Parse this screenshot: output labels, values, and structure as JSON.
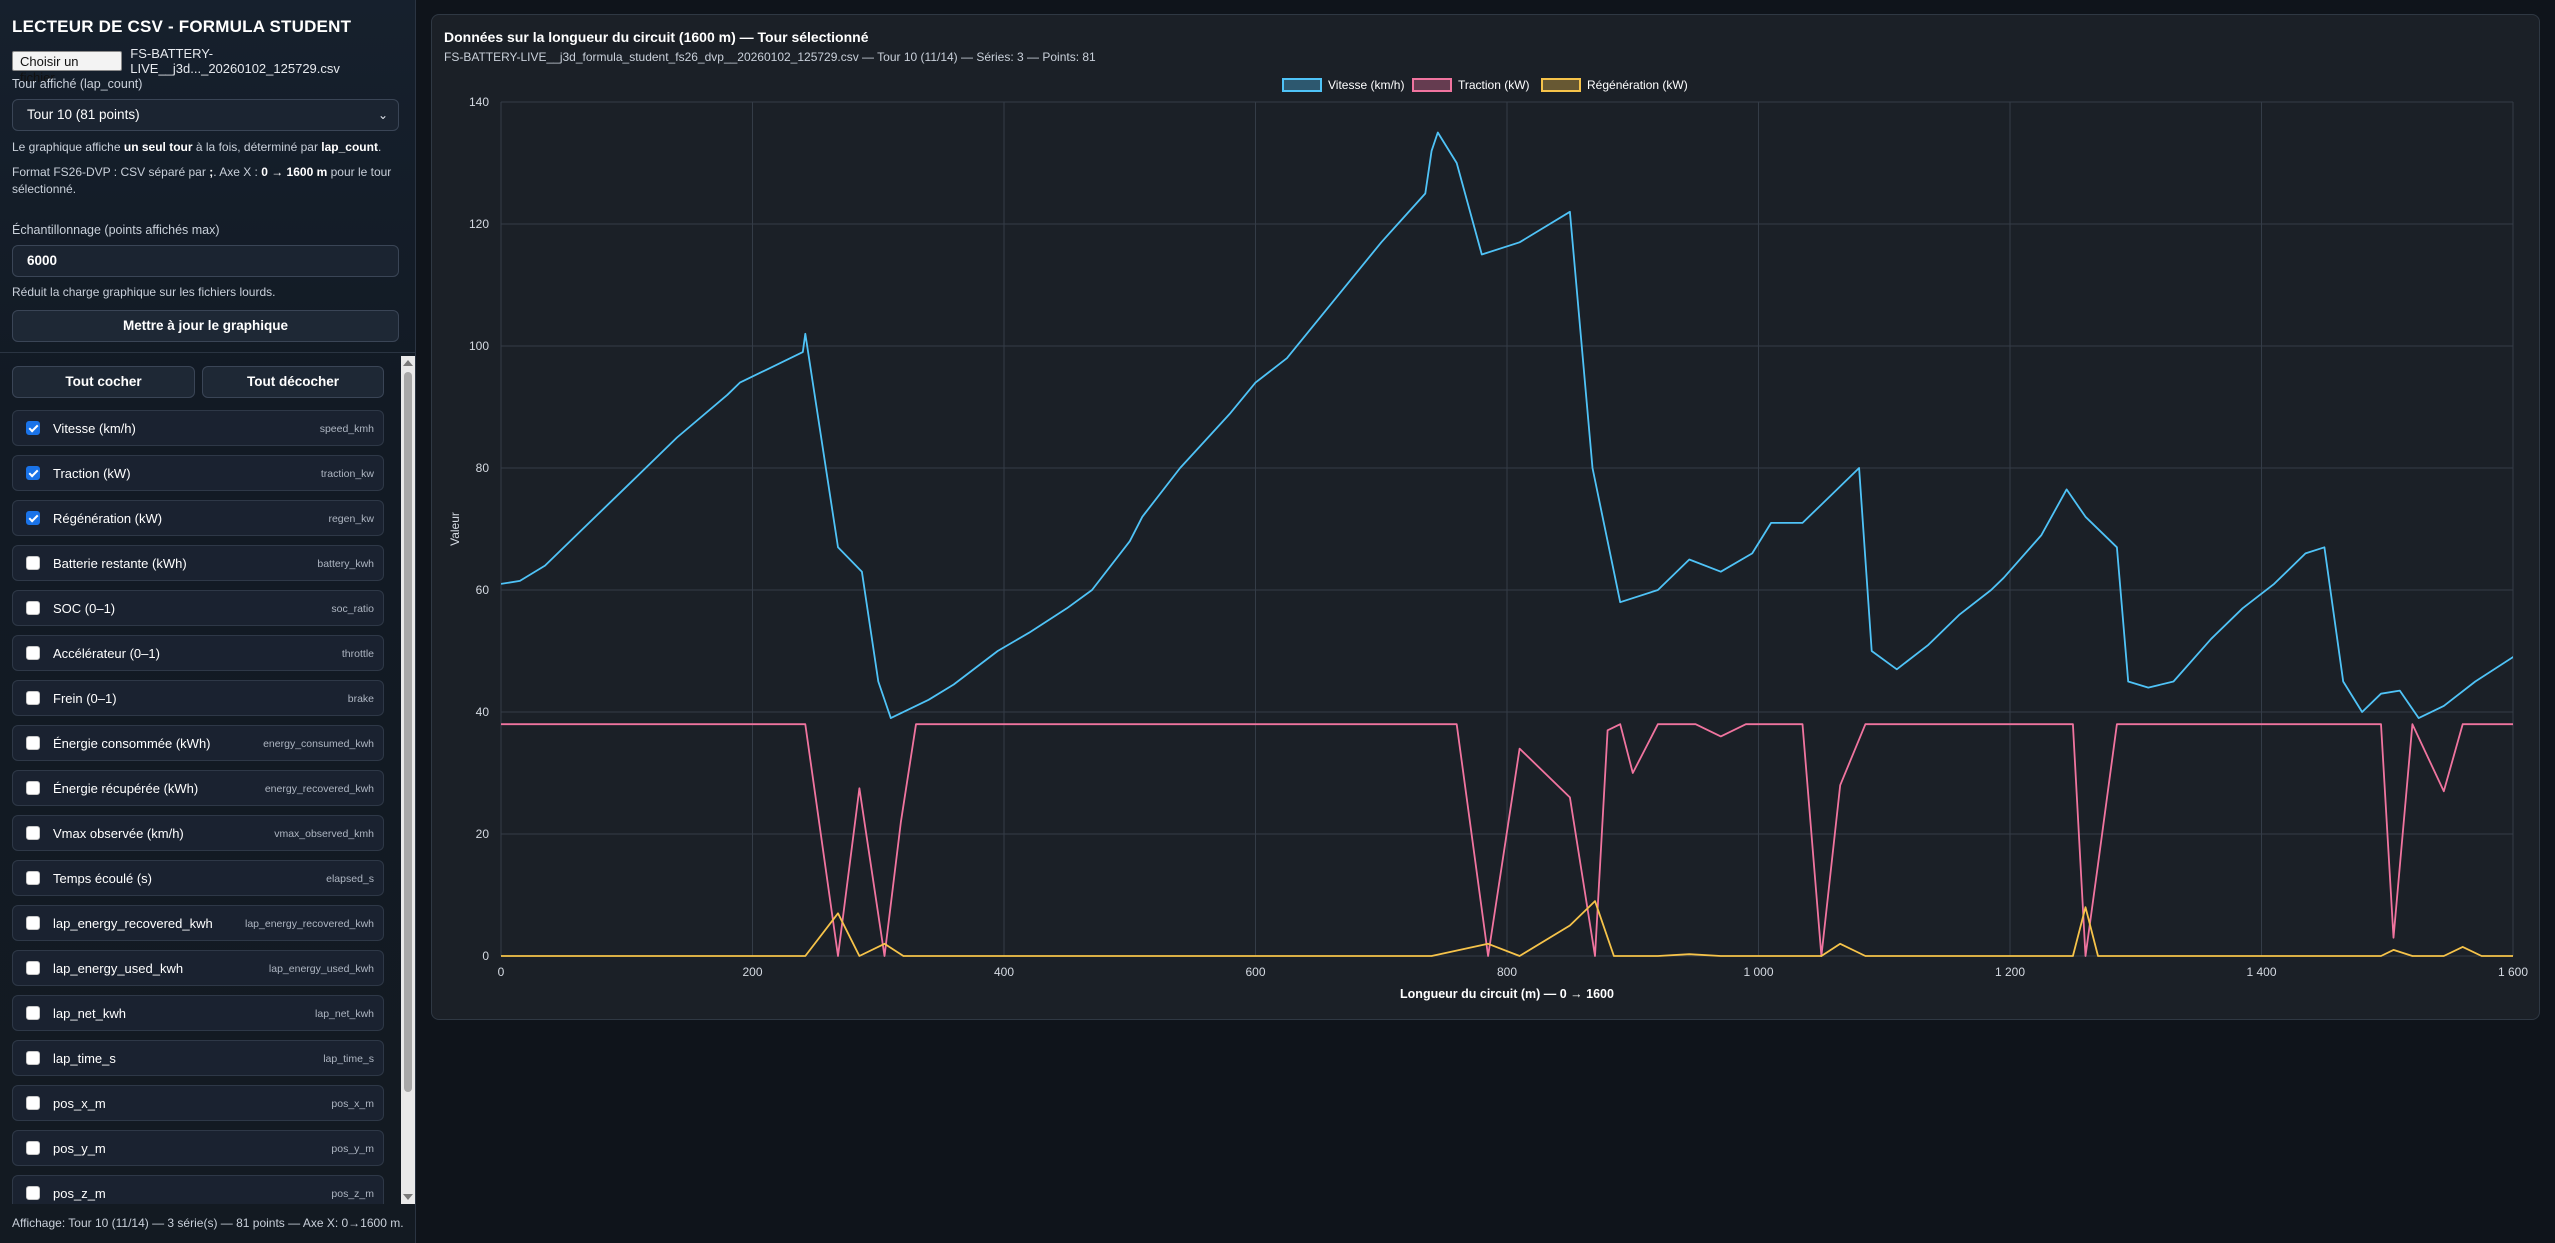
{
  "app": {
    "title": "LECTEUR DE CSV - FORMULA STUDENT",
    "file_button": "Choisir un fichier",
    "file_name": "FS-BATTERY-LIVE__j3d..._20260102_125729.csv"
  },
  "lap": {
    "label": "Tour affiché (lap_count)",
    "selected": "Tour 10 (81 points)",
    "note_pre": "Le graphique affiche ",
    "note_b1": "un seul tour",
    "note_mid": " à la fois, déterminé par ",
    "note_b2": "lap_count",
    "note_end": ".",
    "format_pre": "Format FS26-DVP : CSV séparé par ",
    "format_b1": ";",
    "format_mid": ". Axe X : ",
    "format_b2": "0 → 1600 m",
    "format_end": " pour le tour sélectionné."
  },
  "sampling": {
    "label": "Échantillonnage (points affichés max)",
    "value": "6000",
    "note": "Réduit la charge graphique sur les fichiers lourds.",
    "update_button": "Mettre à jour le graphique"
  },
  "series_controls": {
    "check_all": "Tout cocher",
    "uncheck_all": "Tout décocher"
  },
  "series_list": [
    {
      "label": "Vitesse (km/h)",
      "key": "speed_kmh",
      "checked": true
    },
    {
      "label": "Traction (kW)",
      "key": "traction_kw",
      "checked": true
    },
    {
      "label": "Régénération (kW)",
      "key": "regen_kw",
      "checked": true
    },
    {
      "label": "Batterie restante (kWh)",
      "key": "battery_kwh",
      "checked": false
    },
    {
      "label": "SOC (0–1)",
      "key": "soc_ratio",
      "checked": false
    },
    {
      "label": "Accélérateur (0–1)",
      "key": "throttle",
      "checked": false
    },
    {
      "label": "Frein (0–1)",
      "key": "brake",
      "checked": false
    },
    {
      "label": "Énergie consommée (kWh)",
      "key": "energy_consumed_kwh",
      "checked": false
    },
    {
      "label": "Énergie récupérée (kWh)",
      "key": "energy_recovered_kwh",
      "checked": false
    },
    {
      "label": "Vmax observée (km/h)",
      "key": "vmax_observed_kmh",
      "checked": false
    },
    {
      "label": "Temps écoulé (s)",
      "key": "elapsed_s",
      "checked": false
    },
    {
      "label": "lap_energy_recovered_kwh",
      "key": "lap_energy_recovered_kwh",
      "checked": false
    },
    {
      "label": "lap_energy_used_kwh",
      "key": "lap_energy_used_kwh",
      "checked": false
    },
    {
      "label": "lap_net_kwh",
      "key": "lap_net_kwh",
      "checked": false
    },
    {
      "label": "lap_time_s",
      "key": "lap_time_s",
      "checked": false
    },
    {
      "label": "pos_x_m",
      "key": "pos_x_m",
      "checked": false
    },
    {
      "label": "pos_y_m",
      "key": "pos_y_m",
      "checked": false
    },
    {
      "label": "pos_z_m",
      "key": "pos_z_m",
      "checked": false
    }
  ],
  "status": "Affichage: Tour 10 (11/14) — 3 série(s) — 81 points — Axe X: 0→1600 m.",
  "panel": {
    "title": "Données sur la longueur du circuit (1600 m) — Tour sélectionné",
    "subtitle": "FS-BATTERY-LIVE__j3d_formula_student_fs26_dvp__20260102_125729.csv — Tour 10 (11/14) — Séries: 3 — Points: 81"
  },
  "colors": {
    "speed": "#4fc3f7",
    "traction": "#f0749f",
    "regen": "#f6c34a",
    "grid": "#343c47",
    "axis_text": "#d5dae2"
  },
  "chart_data": {
    "type": "line",
    "xlabel": "Longueur du circuit (m) — 0 → 1600",
    "ylabel": "Valeur",
    "xlim": [
      0,
      1600
    ],
    "ylim": [
      0,
      140
    ],
    "x_ticks": [
      "0",
      "200",
      "400",
      "600",
      "800",
      "1 000",
      "1 200",
      "1 400",
      "1 600"
    ],
    "y_ticks": [
      "0",
      "20",
      "40",
      "60",
      "80",
      "100",
      "120",
      "140"
    ],
    "grid": true,
    "legend_position": "top-center",
    "series": [
      {
        "name": "Vitesse (km/h)",
        "points": [
          [
            0,
            61
          ],
          [
            15,
            61.5
          ],
          [
            35,
            64
          ],
          [
            60,
            69
          ],
          [
            100,
            77
          ],
          [
            140,
            85
          ],
          [
            180,
            92
          ],
          [
            190,
            94
          ],
          [
            210,
            96
          ],
          [
            240,
            99
          ],
          [
            242,
            102
          ],
          [
            268,
            67
          ],
          [
            287,
            63
          ],
          [
            300,
            45
          ],
          [
            310,
            39
          ],
          [
            340,
            42
          ],
          [
            360,
            44.5
          ],
          [
            395,
            50
          ],
          [
            420,
            53
          ],
          [
            450,
            57
          ],
          [
            470,
            60
          ],
          [
            500,
            68
          ],
          [
            510,
            72
          ],
          [
            540,
            80
          ],
          [
            580,
            89
          ],
          [
            600,
            94
          ],
          [
            625,
            98
          ],
          [
            700,
            117
          ],
          [
            735,
            125
          ],
          [
            740,
            132
          ],
          [
            745,
            135
          ],
          [
            760,
            130
          ],
          [
            780,
            115
          ],
          [
            810,
            117
          ],
          [
            850,
            122
          ],
          [
            868,
            80
          ],
          [
            890,
            58
          ],
          [
            920,
            60
          ],
          [
            945,
            65
          ],
          [
            970,
            63
          ],
          [
            995,
            66
          ],
          [
            1010,
            71
          ],
          [
            1035,
            71
          ],
          [
            1050,
            74
          ],
          [
            1080,
            80
          ],
          [
            1090,
            50
          ],
          [
            1110,
            47
          ],
          [
            1135,
            51
          ],
          [
            1160,
            56
          ],
          [
            1185,
            60
          ],
          [
            1195,
            62
          ],
          [
            1225,
            69
          ],
          [
            1245,
            76.5
          ],
          [
            1260,
            72
          ],
          [
            1285,
            67
          ],
          [
            1294,
            45
          ],
          [
            1310,
            44
          ],
          [
            1330,
            45
          ],
          [
            1360,
            52
          ],
          [
            1385,
            57
          ],
          [
            1410,
            61
          ],
          [
            1435,
            66
          ],
          [
            1450,
            67
          ],
          [
            1465,
            45
          ],
          [
            1480,
            40
          ],
          [
            1495,
            43
          ],
          [
            1510,
            43.5
          ],
          [
            1525,
            39
          ],
          [
            1545,
            41
          ],
          [
            1570,
            45
          ],
          [
            1600,
            49
          ],
          [
            1640,
            55
          ]
        ]
      },
      {
        "name": "Traction (kW)",
        "points": [
          [
            0,
            38
          ],
          [
            240,
            38
          ],
          [
            242,
            38
          ],
          [
            268,
            0
          ],
          [
            285,
            27.5
          ],
          [
            305,
            0
          ],
          [
            318,
            22
          ],
          [
            330,
            38
          ],
          [
            745,
            38
          ],
          [
            760,
            38
          ],
          [
            785,
            0
          ],
          [
            810,
            34
          ],
          [
            850,
            26
          ],
          [
            870,
            0
          ],
          [
            880,
            37
          ],
          [
            890,
            38
          ],
          [
            900,
            30
          ],
          [
            920,
            38
          ],
          [
            950,
            38
          ],
          [
            970,
            36
          ],
          [
            990,
            38
          ],
          [
            1035,
            38
          ],
          [
            1050,
            0
          ],
          [
            1065,
            28
          ],
          [
            1085,
            38
          ],
          [
            1250,
            38
          ],
          [
            1260,
            0
          ],
          [
            1270,
            15
          ],
          [
            1285,
            38
          ],
          [
            1495,
            38
          ],
          [
            1505,
            3
          ],
          [
            1520,
            38
          ],
          [
            1545,
            27
          ],
          [
            1560,
            38
          ],
          [
            1640,
            38
          ]
        ]
      },
      {
        "name": "Régénération (kW)",
        "points": [
          [
            0,
            0
          ],
          [
            242,
            0
          ],
          [
            268,
            7
          ],
          [
            285,
            0
          ],
          [
            305,
            2
          ],
          [
            320,
            0
          ],
          [
            740,
            0
          ],
          [
            785,
            2
          ],
          [
            810,
            0
          ],
          [
            850,
            5
          ],
          [
            870,
            9
          ],
          [
            885,
            0
          ],
          [
            920,
            0
          ],
          [
            945,
            0.3
          ],
          [
            970,
            0
          ],
          [
            1050,
            0
          ],
          [
            1065,
            2
          ],
          [
            1085,
            0
          ],
          [
            1250,
            0
          ],
          [
            1260,
            8
          ],
          [
            1270,
            0
          ],
          [
            1495,
            0
          ],
          [
            1505,
            1
          ],
          [
            1520,
            0
          ],
          [
            1545,
            0
          ],
          [
            1560,
            1.5
          ],
          [
            1575,
            0
          ],
          [
            1640,
            0
          ]
        ]
      }
    ]
  }
}
